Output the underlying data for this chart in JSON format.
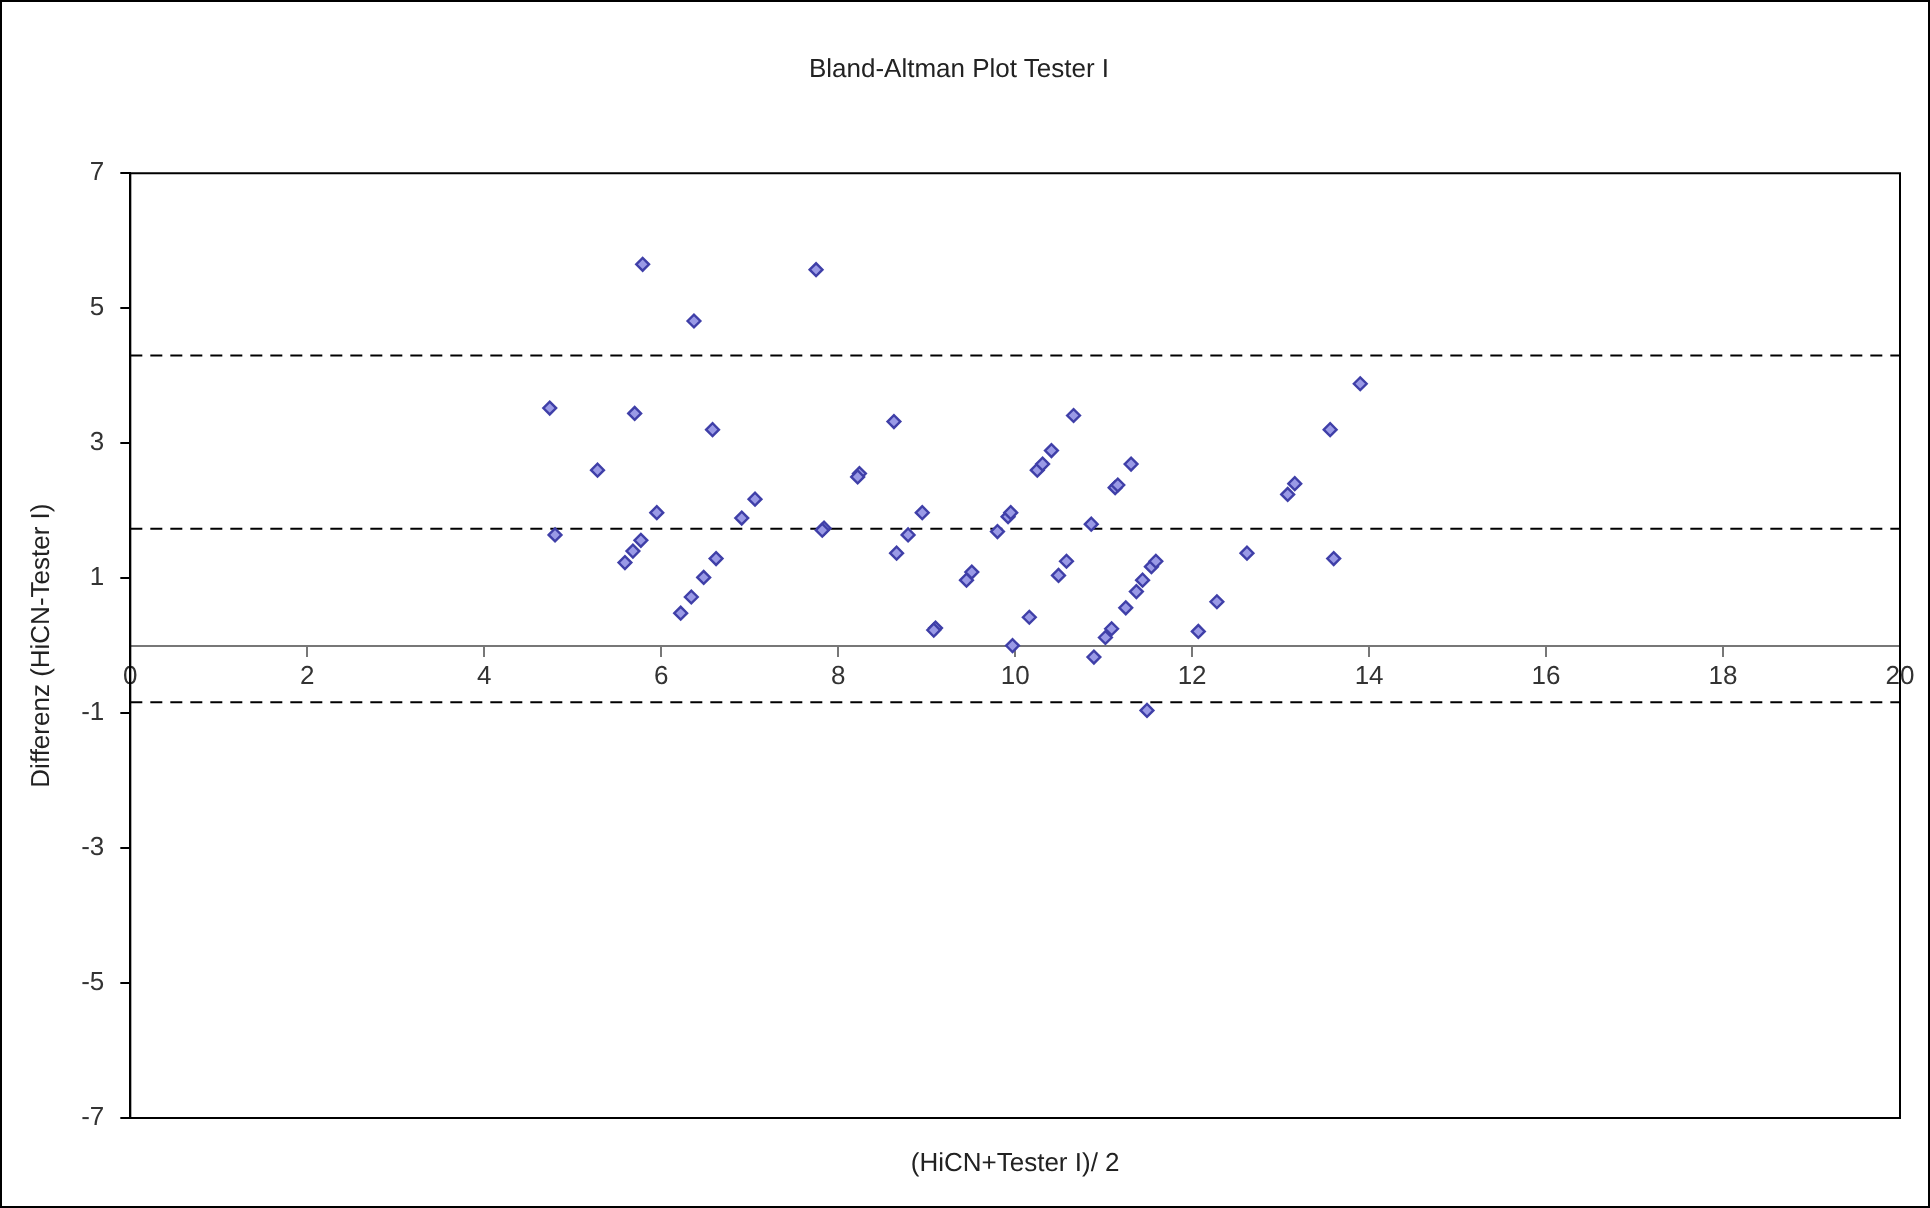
{
  "chart_data": {
    "type": "scatter",
    "title": "Bland-Altman Plot Tester I",
    "xlabel": "(HiCN+Tester I)/ 2",
    "ylabel": "Differenz (HiCN-Tester I)",
    "series": [
      {
        "color": "#3f3fa8",
        "x": [
          5.79,
          7.75,
          6.37,
          4.74,
          5.7,
          6.58,
          5.28,
          8.24,
          8.22,
          7.06,
          5.95,
          6.91,
          7.84,
          7.82,
          4.8,
          5.77,
          5.68,
          5.59,
          6.62,
          6.48,
          6.34,
          6.22,
          8.63,
          8.66,
          8.79,
          8.95,
          9.1,
          9.08,
          9.45,
          9.51,
          9.8,
          9.92,
          9.95,
          9.97,
          10.16,
          10.25,
          10.31,
          10.41,
          10.49,
          10.58,
          10.66,
          10.86,
          10.89,
          11.02,
          11.09,
          11.13,
          11.16,
          11.25,
          11.31,
          11.37,
          11.44,
          11.49,
          11.54,
          11.59,
          12.07,
          12.28,
          12.62,
          13.9,
          13.56,
          13.16,
          13.08,
          13.6
        ],
        "values": [
          5.65,
          5.57,
          4.81,
          3.52,
          3.44,
          3.2,
          2.6,
          2.55,
          2.5,
          2.17,
          1.97,
          1.89,
          1.74,
          1.71,
          1.64,
          1.56,
          1.4,
          1.23,
          1.29,
          1.01,
          0.72,
          0.48,
          3.32,
          1.37,
          1.64,
          1.97,
          0.26,
          0.23,
          0.97,
          1.09,
          1.69,
          1.91,
          1.97,
          0.0,
          0.42,
          2.6,
          2.69,
          2.89,
          1.04,
          1.25,
          3.41,
          1.8,
          -0.17,
          0.12,
          0.25,
          2.34,
          2.38,
          0.56,
          2.69,
          0.8,
          0.97,
          -0.96,
          1.17,
          1.25,
          0.21,
          0.65,
          1.37,
          3.88,
          3.2,
          2.4,
          2.24,
          1.29
        ]
      }
    ],
    "xlim": [
      0,
      20
    ],
    "xticks": [
      0,
      2,
      4,
      6,
      8,
      10,
      12,
      14,
      16,
      18,
      20
    ],
    "ylim": [
      -7,
      7
    ],
    "yticks": [
      -7,
      -5,
      -3,
      -1,
      1,
      3,
      5,
      7
    ],
    "ref_lines": [
      {
        "axis": "y",
        "value": 4.3,
        "color": "#000000",
        "line_style": "dashed"
      },
      {
        "axis": "y",
        "value": 1.73,
        "color": "#000000",
        "line_style": "dashed"
      },
      {
        "axis": "y",
        "value": -0.84,
        "color": "#000000",
        "line_style": "dashed"
      }
    ],
    "marker": "diamond",
    "grid": false,
    "legend": false
  }
}
